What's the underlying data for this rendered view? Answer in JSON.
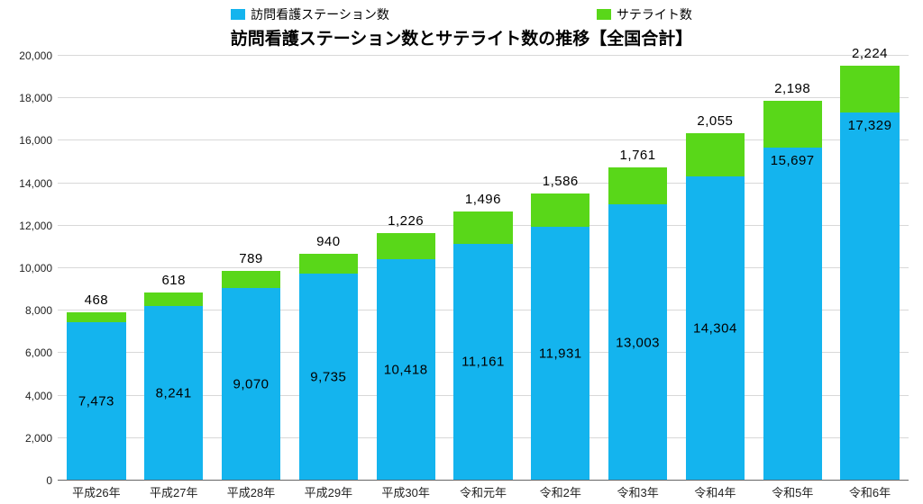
{
  "chart": {
    "type": "stacked-bar",
    "title": "訪問看護ステーション数とサテライト数の推移【全国合計】",
    "title_fontsize": 19,
    "title_weight": 700,
    "background_color": "#ffffff",
    "grid_color": "#d8d8d8",
    "baseline_color": "#666666",
    "label_fontsize": 15,
    "axis_fontsize": 12,
    "legend": {
      "items": [
        {
          "label": "訪問看護ステーション数",
          "color": "#14b4ee"
        },
        {
          "label": "サテライト数",
          "color": "#59d719"
        }
      ]
    },
    "y_axis": {
      "min": 0,
      "max": 20000,
      "ticks": [
        0,
        2000,
        4000,
        6000,
        8000,
        10000,
        12000,
        14000,
        16000,
        18000,
        20000
      ],
      "tick_labels": [
        "0",
        "2,000",
        "4,000",
        "6,000",
        "8,000",
        "10,000",
        "12,000",
        "14,000",
        "16,000",
        "18,000",
        "20,000"
      ]
    },
    "categories": [
      "平成26年",
      "平成27年",
      "平成28年",
      "平成29年",
      "平成30年",
      "令和元年",
      "令和2年",
      "令和3年",
      "令和4年",
      "令和5年",
      "令和6年"
    ],
    "series": {
      "main": {
        "color": "#14b4ee",
        "values": [
          7473,
          8241,
          9070,
          9735,
          10418,
          11161,
          11931,
          13003,
          14304,
          15697,
          17329
        ],
        "labels": [
          "7,473",
          "8,241",
          "9,070",
          "9,735",
          "10,418",
          "11,161",
          "11,931",
          "13,003",
          "14,304",
          "15,697",
          "17,329"
        ],
        "label_placement": [
          "inside",
          "inside",
          "inside",
          "inside",
          "inside",
          "inside",
          "inside",
          "inside",
          "inside",
          "below_sat",
          "below_sat"
        ]
      },
      "satellite": {
        "color": "#59d719",
        "values": [
          468,
          618,
          789,
          940,
          1226,
          1496,
          1586,
          1761,
          2055,
          2198,
          2224
        ],
        "labels": [
          "468",
          "618",
          "789",
          "940",
          "1,226",
          "1,496",
          "1,586",
          "1,761",
          "2,055",
          "2,198",
          "2,224"
        ]
      }
    },
    "bar_width_ratio": 0.76
  }
}
